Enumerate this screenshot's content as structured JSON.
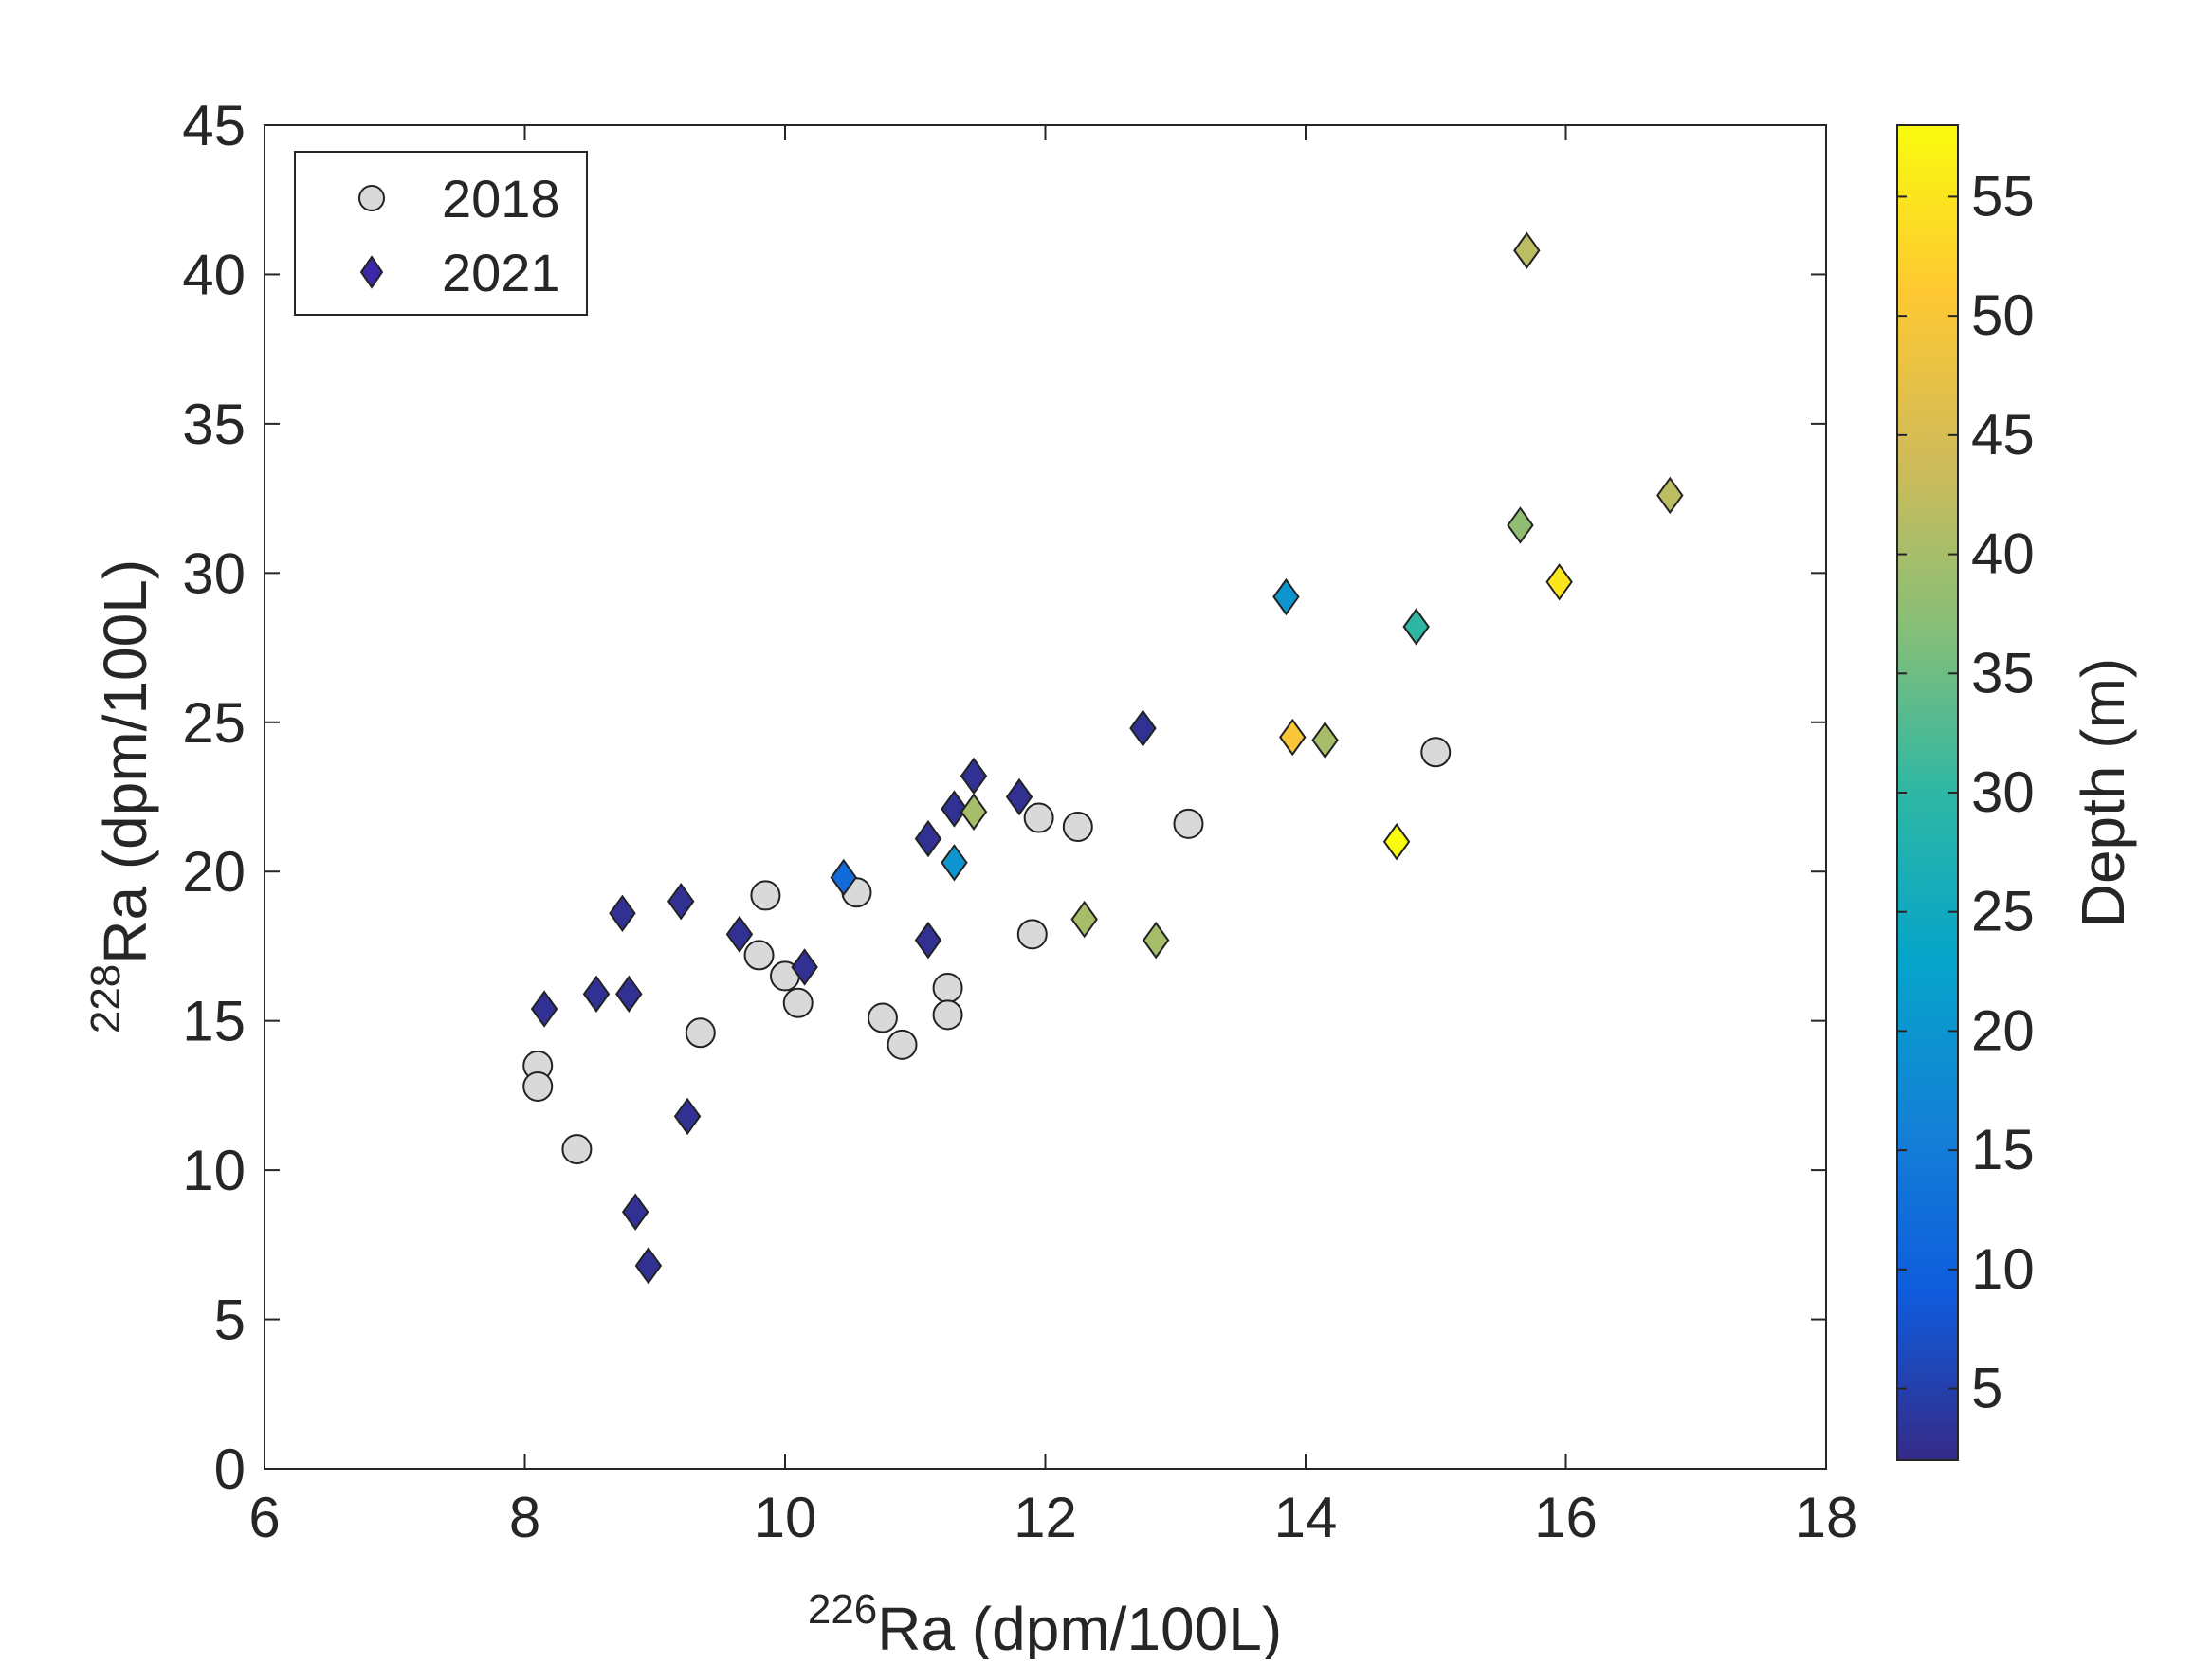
{
  "chart_data": {
    "type": "scatter",
    "title": "",
    "xlabel": {
      "superscript": "226",
      "main": "Ra (dpm/100L)"
    },
    "ylabel": {
      "superscript": "228",
      "main": "Ra (dpm/100L)"
    },
    "xlim": [
      6,
      18
    ],
    "ylim": [
      0,
      45
    ],
    "xticks": [
      "6",
      "8",
      "10",
      "12",
      "14",
      "16",
      "18"
    ],
    "yticks": [
      "0",
      "5",
      "10",
      "15",
      "20",
      "25",
      "30",
      "35",
      "40",
      "45"
    ],
    "grid": false,
    "legend_position": "top-left",
    "colorbar": {
      "label": "Depth (m)",
      "range": [
        2,
        58
      ],
      "ticks": [
        "5",
        "10",
        "15",
        "20",
        "25",
        "30",
        "35",
        "40",
        "45",
        "50",
        "55"
      ],
      "colormap": "parula"
    },
    "series": [
      {
        "name": "2018",
        "marker": "circle",
        "color": "#d9d9d9",
        "points": [
          [
            8.1,
            13.5
          ],
          [
            8.1,
            12.8
          ],
          [
            8.4,
            10.7
          ],
          [
            9.35,
            14.6
          ],
          [
            9.8,
            17.2
          ],
          [
            9.85,
            19.2
          ],
          [
            10.0,
            16.5
          ],
          [
            10.1,
            15.6
          ],
          [
            10.55,
            19.3
          ],
          [
            10.75,
            15.1
          ],
          [
            10.9,
            14.2
          ],
          [
            11.25,
            16.1
          ],
          [
            11.25,
            15.2
          ],
          [
            11.9,
            17.9
          ],
          [
            11.95,
            21.8
          ],
          [
            12.25,
            21.5
          ],
          [
            13.1,
            21.6
          ],
          [
            15.0,
            24.0
          ]
        ]
      },
      {
        "name": "2021",
        "marker": "diamond",
        "color": "#3e26a8",
        "points": [
          {
            "x": 8.15,
            "y": 15.4,
            "depth": 3
          },
          {
            "x": 8.55,
            "y": 15.9,
            "depth": 3
          },
          {
            "x": 8.75,
            "y": 18.6,
            "depth": 3
          },
          {
            "x": 8.8,
            "y": 15.9,
            "depth": 3
          },
          {
            "x": 8.85,
            "y": 8.6,
            "depth": 3
          },
          {
            "x": 8.95,
            "y": 6.8,
            "depth": 3
          },
          {
            "x": 9.2,
            "y": 19.0,
            "depth": 3
          },
          {
            "x": 9.25,
            "y": 11.8,
            "depth": 3
          },
          {
            "x": 9.65,
            "y": 17.9,
            "depth": 3
          },
          {
            "x": 10.15,
            "y": 16.8,
            "depth": 3
          },
          {
            "x": 10.45,
            "y": 19.8,
            "depth": 12
          },
          {
            "x": 11.1,
            "y": 17.7,
            "depth": 3
          },
          {
            "x": 11.1,
            "y": 21.1,
            "depth": 3
          },
          {
            "x": 11.3,
            "y": 22.1,
            "depth": 3
          },
          {
            "x": 11.3,
            "y": 20.3,
            "depth": 20
          },
          {
            "x": 11.45,
            "y": 23.2,
            "depth": 3
          },
          {
            "x": 11.45,
            "y": 22.0,
            "depth": 40
          },
          {
            "x": 11.8,
            "y": 22.5,
            "depth": 3
          },
          {
            "x": 12.3,
            "y": 18.4,
            "depth": 40
          },
          {
            "x": 12.75,
            "y": 24.8,
            "depth": 3
          },
          {
            "x": 12.85,
            "y": 17.7,
            "depth": 40
          },
          {
            "x": 13.85,
            "y": 29.2,
            "depth": 20
          },
          {
            "x": 13.9,
            "y": 24.5,
            "depth": 50
          },
          {
            "x": 14.15,
            "y": 24.4,
            "depth": 40
          },
          {
            "x": 14.7,
            "y": 21.0,
            "depth": 58
          },
          {
            "x": 14.85,
            "y": 28.2,
            "depth": 30
          },
          {
            "x": 15.65,
            "y": 31.6,
            "depth": 38
          },
          {
            "x": 15.7,
            "y": 40.8,
            "depth": 42
          },
          {
            "x": 15.95,
            "y": 29.7,
            "depth": 55
          },
          {
            "x": 16.8,
            "y": 32.6,
            "depth": 42
          }
        ]
      }
    ]
  },
  "legend": {
    "items": [
      {
        "label": "2018"
      },
      {
        "label": "2021"
      }
    ]
  }
}
